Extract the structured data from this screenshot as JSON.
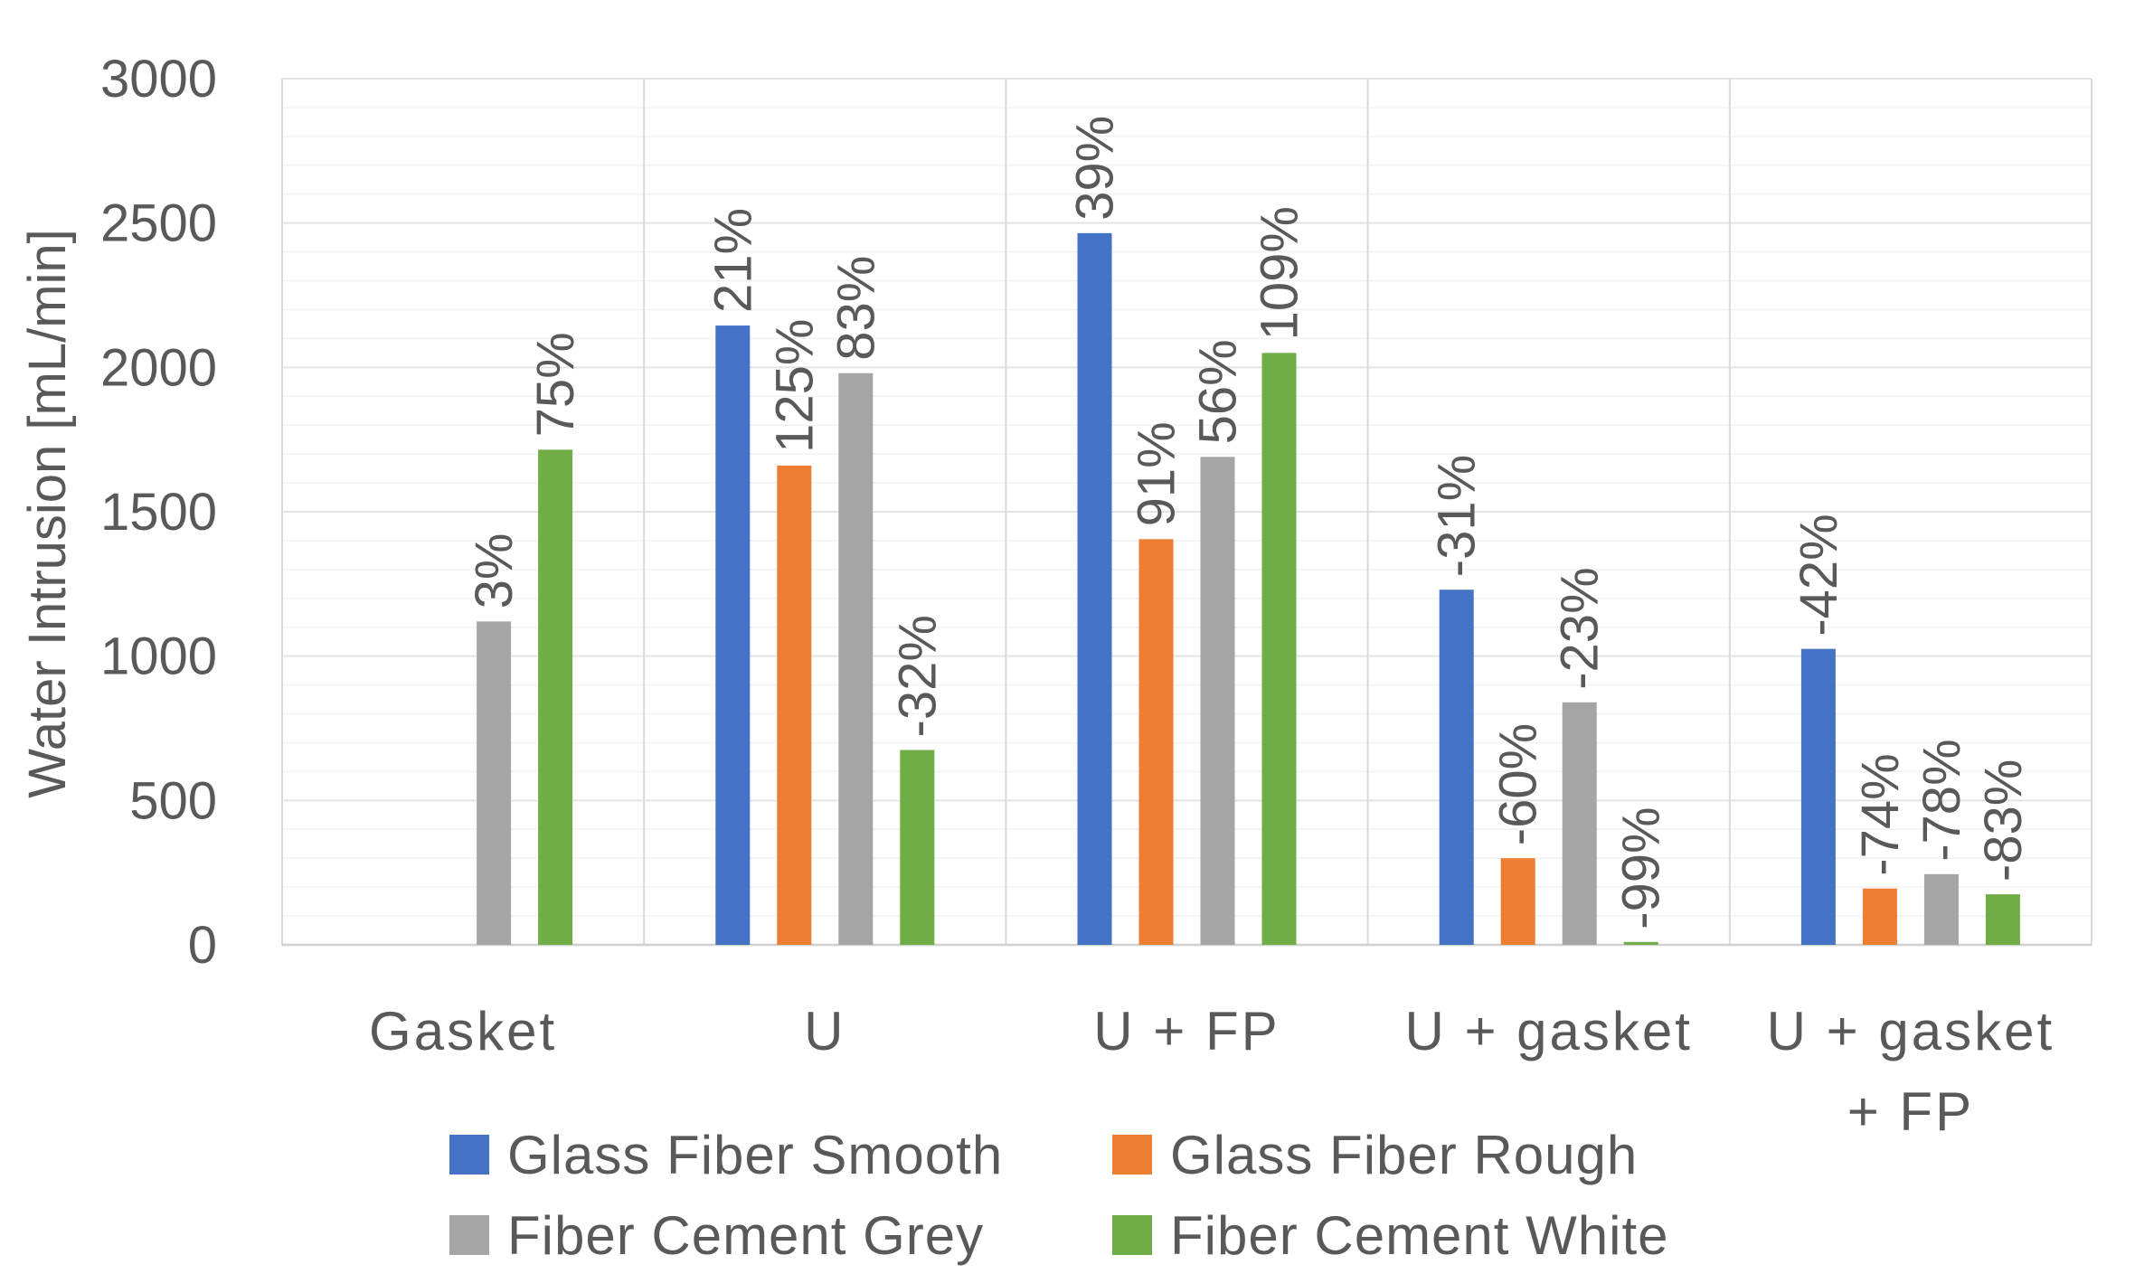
{
  "chart_data": {
    "type": "bar",
    "title": "",
    "xlabel": "",
    "ylabel": "Water Intrusion [mL/min]",
    "ylim": [
      0,
      3000
    ],
    "yticks": [
      0,
      500,
      1000,
      1500,
      2000,
      2500,
      3000
    ],
    "grid": true,
    "categories": [
      {
        "lines": [
          "Gasket"
        ]
      },
      {
        "lines": [
          "U"
        ]
      },
      {
        "lines": [
          "U + FP"
        ]
      },
      {
        "lines": [
          "U + gasket"
        ]
      },
      {
        "lines": [
          "U + gasket",
          "+ FP"
        ]
      }
    ],
    "series": [
      {
        "name": "Glass Fiber Smooth",
        "color": "#4472C4",
        "values": [
          null,
          2145,
          2465,
          1230,
          1025
        ],
        "labels": [
          "",
          "21%",
          "39%",
          "-31%",
          "-42%"
        ]
      },
      {
        "name": "Glass Fiber Rough",
        "color": "#ED7D31",
        "values": [
          null,
          1660,
          1405,
          300,
          195
        ],
        "labels": [
          "",
          "125%",
          "91%",
          "-60%",
          "-74%"
        ]
      },
      {
        "name": "Fiber Cement Grey",
        "color": "#A5A5A5",
        "values": [
          1120,
          1980,
          1690,
          840,
          245
        ],
        "labels": [
          "3%",
          "83%",
          "56%",
          "-23%",
          "-78%"
        ]
      },
      {
        "name": "Fiber Cement White",
        "color": "#70AD47",
        "values": [
          1715,
          675,
          2050,
          10,
          175
        ],
        "labels": [
          "75%",
          "-32%",
          "109%",
          "-99%",
          "-83%"
        ]
      }
    ],
    "legend_position": "bottom"
  }
}
